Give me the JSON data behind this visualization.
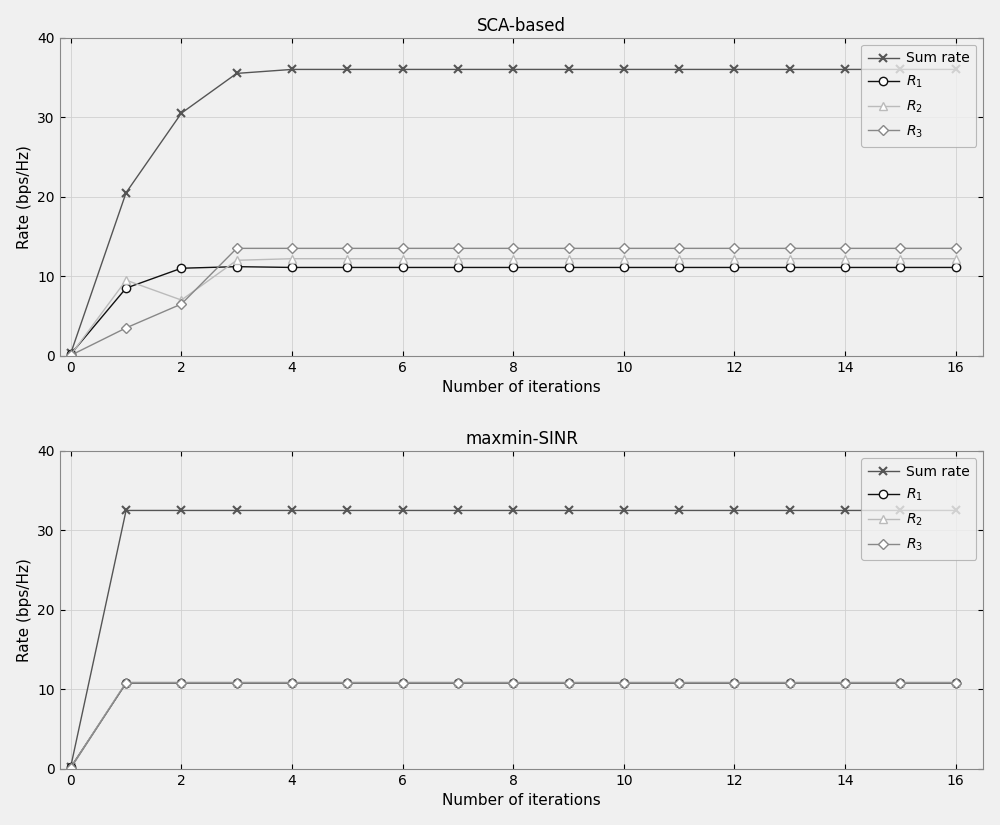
{
  "title1": "SCA-based",
  "title2": "maxmin-SINR",
  "xlabel": "Number of iterations",
  "ylabel": "Rate (bps/Hz)",
  "xlim": [
    -0.2,
    16.5
  ],
  "ylim": [
    0,
    40
  ],
  "xticks": [
    0,
    2,
    4,
    6,
    8,
    10,
    12,
    14,
    16
  ],
  "yticks": [
    0,
    10,
    20,
    30,
    40
  ],
  "legend_labels": [
    "Sum rate",
    "R_1",
    "R_2",
    "R_3"
  ],
  "bg_color": "#f0f0f0",
  "colors": {
    "sum_rate": "#555555",
    "R1": "#111111",
    "R2": "#bbbbbb",
    "R3": "#888888"
  },
  "sca": {
    "iters": [
      0,
      1,
      2,
      3,
      4,
      5,
      6,
      7,
      8,
      9,
      10,
      11,
      12,
      13,
      14,
      15,
      16
    ],
    "sum_rate": [
      0.3,
      20.5,
      30.5,
      35.5,
      36.0,
      36.0,
      36.0,
      36.0,
      36.0,
      36.0,
      36.0,
      36.0,
      36.0,
      36.0,
      36.0,
      36.0,
      36.0
    ],
    "R1": [
      0.2,
      8.5,
      11.0,
      11.2,
      11.1,
      11.1,
      11.1,
      11.1,
      11.1,
      11.1,
      11.1,
      11.1,
      11.1,
      11.1,
      11.1,
      11.1,
      11.1
    ],
    "R2": [
      0.1,
      9.5,
      7.0,
      12.0,
      12.2,
      12.2,
      12.2,
      12.2,
      12.2,
      12.2,
      12.2,
      12.2,
      12.2,
      12.2,
      12.2,
      12.2,
      12.2
    ],
    "R3": [
      0.05,
      3.5,
      6.5,
      13.5,
      13.5,
      13.5,
      13.5,
      13.5,
      13.5,
      13.5,
      13.5,
      13.5,
      13.5,
      13.5,
      13.5,
      13.5,
      13.5
    ]
  },
  "maxmin": {
    "iters": [
      0,
      1,
      2,
      3,
      4,
      5,
      6,
      7,
      8,
      9,
      10,
      11,
      12,
      13,
      14,
      15,
      16
    ],
    "sum_rate": [
      0.3,
      32.5,
      32.5,
      32.5,
      32.5,
      32.5,
      32.5,
      32.5,
      32.5,
      32.5,
      32.5,
      32.5,
      32.5,
      32.5,
      32.5,
      32.5,
      32.5
    ],
    "R1": [
      0.2,
      10.8,
      10.8,
      10.8,
      10.8,
      10.8,
      10.8,
      10.8,
      10.8,
      10.8,
      10.8,
      10.8,
      10.8,
      10.8,
      10.8,
      10.8,
      10.8
    ],
    "R2": [
      0.15,
      10.9,
      10.9,
      10.9,
      10.9,
      10.9,
      10.9,
      10.9,
      10.9,
      10.9,
      10.9,
      10.9,
      10.9,
      10.9,
      10.9,
      10.9,
      10.9
    ],
    "R3": [
      0.1,
      10.8,
      10.8,
      10.8,
      10.8,
      10.8,
      10.8,
      10.8,
      10.8,
      10.8,
      10.8,
      10.8,
      10.8,
      10.8,
      10.8,
      10.8,
      10.8
    ]
  }
}
